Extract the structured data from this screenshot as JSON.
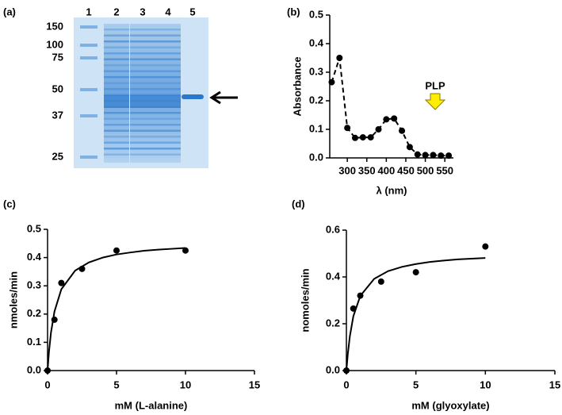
{
  "gel": {
    "panel_label": "(a)",
    "lanes": [
      "1",
      "2",
      "3",
      "4",
      "5"
    ],
    "markers": [
      "150",
      "100",
      "75",
      "50",
      "37",
      "25"
    ]
  },
  "chart_data": [
    {
      "type": "line",
      "panel_label": "(b)",
      "y_label": "Absorbance",
      "x_label": "λ (nm)",
      "annotation": "PLP",
      "xlim": [
        255,
        572
      ],
      "xticks": [
        300,
        350,
        400,
        450,
        500,
        550
      ],
      "ylim": [
        0,
        0.5
      ],
      "yticks": [
        {
          "value": 0,
          "label": "0.0"
        },
        0.1,
        0.2,
        0.3,
        0.4,
        0.5
      ],
      "series": [
        {
          "color": "#000000",
          "line_style": "dashed",
          "markers": true,
          "x": [
            260,
            280,
            300,
            320,
            340,
            360,
            380,
            400,
            420,
            440,
            460,
            480,
            500,
            520,
            540,
            560
          ],
          "values": [
            0.265,
            0.35,
            0.105,
            0.07,
            0.072,
            0.072,
            0.1,
            0.135,
            0.138,
            0.095,
            0.038,
            0.012,
            0.01,
            0.01,
            0.008,
            0.008
          ]
        }
      ]
    },
    {
      "type": "scatter",
      "panel_label": "(c)",
      "y_label": "nmoles/min",
      "x_label": "mM (L-alanine)",
      "xlim": [
        0,
        15
      ],
      "xticks": [
        0,
        5,
        10,
        15
      ],
      "ylim": [
        0,
        0.5
      ],
      "yticks": [
        {
          "value": 0,
          "label": "0.0"
        },
        0.1,
        0.2,
        0.3,
        0.4,
        0.5
      ],
      "series": [
        {
          "color": "#000000",
          "mode": "markers",
          "x": [
            0,
            0.5,
            1,
            2.5,
            5,
            10
          ],
          "values": [
            0,
            0.18,
            0.31,
            0.36,
            0.425,
            0.425
          ]
        },
        {
          "color": "#000000",
          "mode": "line",
          "x": [
            0,
            0.1,
            0.25,
            0.5,
            1,
            2,
            3,
            4,
            5,
            6,
            7,
            8,
            9,
            10
          ],
          "values": [
            0,
            0.066,
            0.135,
            0.209,
            0.288,
            0.354,
            0.383,
            0.4,
            0.411,
            0.418,
            0.424,
            0.428,
            0.431,
            0.434
          ]
        }
      ]
    },
    {
      "type": "scatter",
      "panel_label": "(d)",
      "y_label": "nomoles/min",
      "x_label": "mM (glyoxylate)",
      "xlim": [
        0,
        15
      ],
      "xticks": [
        0,
        5,
        10,
        15
      ],
      "ylim": [
        0,
        0.6
      ],
      "yticks": [
        {
          "value": 0,
          "label": "0.0"
        },
        0.2,
        0.4,
        0.6
      ],
      "series": [
        {
          "color": "#000000",
          "mode": "markers",
          "x": [
            0,
            0.5,
            1,
            2.5,
            5,
            10
          ],
          "values": [
            0,
            0.265,
            0.32,
            0.38,
            0.42,
            0.53
          ]
        },
        {
          "color": "#000000",
          "mode": "line",
          "x": [
            0,
            0.1,
            0.25,
            0.5,
            1,
            2,
            3,
            4,
            5,
            6,
            7,
            8,
            9,
            10
          ],
          "values": [
            0,
            0.07,
            0.147,
            0.232,
            0.319,
            0.392,
            0.425,
            0.443,
            0.455,
            0.464,
            0.47,
            0.475,
            0.478,
            0.481
          ]
        }
      ]
    }
  ]
}
